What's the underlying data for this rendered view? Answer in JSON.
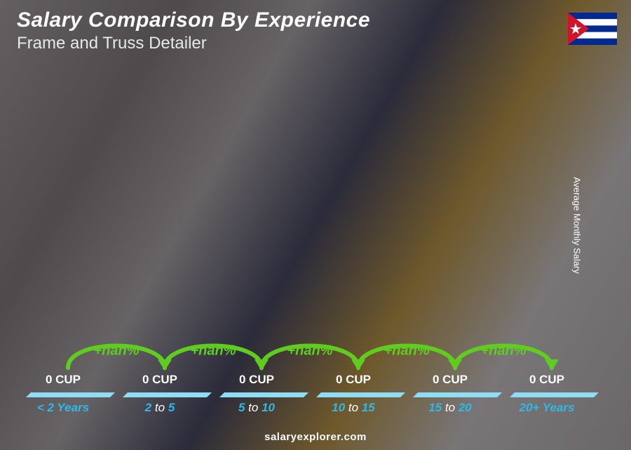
{
  "title": "Salary Comparison By Experience",
  "subtitle": "Frame and Truss Detailer",
  "side_label": "Average Monthly Salary",
  "footer": "salaryexplorer.com",
  "flag": {
    "stripe_colors": [
      "#002a8f",
      "#ffffff",
      "#002a8f",
      "#ffffff",
      "#002a8f"
    ],
    "triangle_color": "#cf142b",
    "star_color": "#ffffff"
  },
  "chart": {
    "type": "bar",
    "bar_front_gradient": [
      "#42c7f4",
      "#1ca8e0"
    ],
    "bar_top_color": "#8edcf5",
    "bar_side_color": "#1591c4",
    "x_label_color": "#2fb9e6",
    "arc_color": "#5fcc1f",
    "arc_label_color": "#5fcc1f",
    "value_text_color": "#ffffff",
    "background_overlay": "rgba(30,30,40,0.55)",
    "bars": [
      {
        "category_pre": "< ",
        "category_num": "2",
        "category_post": " Years",
        "value_label": "0 CUP",
        "height_pct": 28
      },
      {
        "category_pre": "",
        "category_num": "2",
        "category_mid": " to ",
        "category_num2": "5",
        "category_post": "",
        "value_label": "0 CUP",
        "height_pct": 38
      },
      {
        "category_pre": "",
        "category_num": "5",
        "category_mid": " to ",
        "category_num2": "10",
        "category_post": "",
        "value_label": "0 CUP",
        "height_pct": 50
      },
      {
        "category_pre": "",
        "category_num": "10",
        "category_mid": " to ",
        "category_num2": "15",
        "category_post": "",
        "value_label": "0 CUP",
        "height_pct": 60
      },
      {
        "category_pre": "",
        "category_num": "15",
        "category_mid": " to ",
        "category_num2": "20",
        "category_post": "",
        "value_label": "0 CUP",
        "height_pct": 74
      },
      {
        "category_pre": "",
        "category_num": "20+",
        "category_post": " Years",
        "value_label": "0 CUP",
        "height_pct": 86
      }
    ],
    "arcs": [
      {
        "label": "+nan%"
      },
      {
        "label": "+nan%"
      },
      {
        "label": "+nan%"
      },
      {
        "label": "+nan%"
      },
      {
        "label": "+nan%"
      }
    ]
  }
}
